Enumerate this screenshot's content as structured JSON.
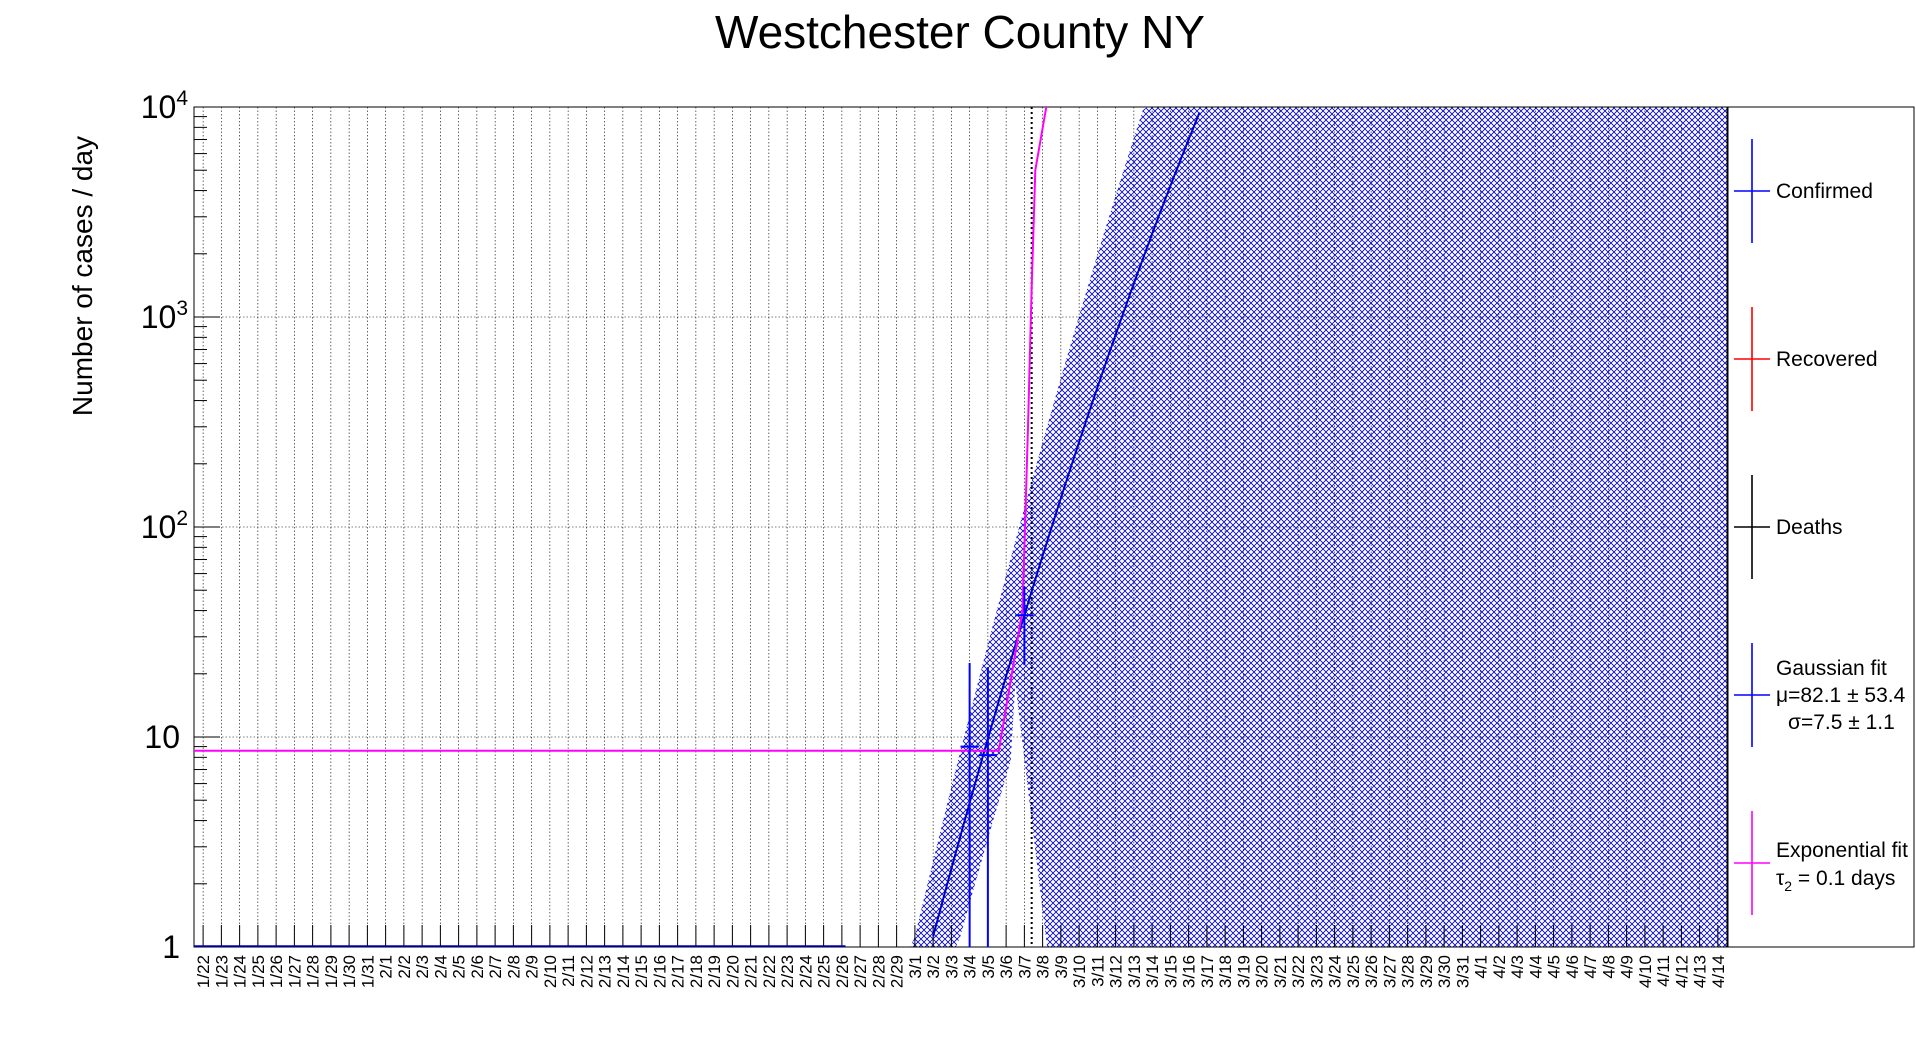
{
  "chart_data": {
    "type": "line",
    "title": "Westchester County NY",
    "ylabel": "Number of cases / day",
    "xlabel": "",
    "yscale": "log",
    "ylim": [
      1,
      10000
    ],
    "y_ticks": [
      {
        "value": 1,
        "base": "1",
        "exp": ""
      },
      {
        "value": 10,
        "base": "10",
        "exp": ""
      },
      {
        "value": 100,
        "base": "10",
        "exp": "2"
      },
      {
        "value": 1000,
        "base": "10",
        "exp": "3"
      },
      {
        "value": 10000,
        "base": "10",
        "exp": "4"
      }
    ],
    "x_categories": [
      "1/22",
      "1/23",
      "1/24",
      "1/25",
      "1/26",
      "1/27",
      "1/28",
      "1/29",
      "1/30",
      "1/31",
      "2/1",
      "2/2",
      "2/3",
      "2/4",
      "2/5",
      "2/6",
      "2/7",
      "2/8",
      "2/9",
      "2/10",
      "2/11",
      "2/12",
      "2/13",
      "2/14",
      "2/15",
      "2/16",
      "2/17",
      "2/18",
      "2/19",
      "2/20",
      "2/21",
      "2/22",
      "2/23",
      "2/24",
      "2/25",
      "2/26",
      "2/27",
      "2/28",
      "2/29",
      "3/1",
      "3/2",
      "3/3",
      "3/4",
      "3/5",
      "3/6",
      "3/7",
      "3/8",
      "3/9",
      "3/10",
      "3/11",
      "3/12",
      "3/13",
      "3/14",
      "3/15",
      "3/16",
      "3/17",
      "3/18",
      "3/19",
      "3/20",
      "3/21",
      "3/22",
      "3/23",
      "3/24",
      "3/25",
      "3/26",
      "3/27",
      "3/28",
      "3/29",
      "3/30",
      "3/31",
      "4/1",
      "4/2",
      "4/3",
      "4/4",
      "4/5",
      "4/6",
      "4/7",
      "4/8",
      "4/9",
      "4/10",
      "4/11",
      "4/12",
      "4/13",
      "4/14"
    ],
    "grid": true,
    "vertical_marker": {
      "x": 45.4,
      "style": "dotted",
      "color": "#000000"
    },
    "series": [
      {
        "name": "Confirmed",
        "color": "#0000ff",
        "kind": "points",
        "points": [
          {
            "x": 42.0,
            "y": 9,
            "yerr_low": 1,
            "yerr_high": 22.5,
            "xerr": 0.5
          },
          {
            "x": 43.0,
            "y": 8.2,
            "yerr_low": 1,
            "yerr_high": 21.5,
            "xerr": 0.5
          },
          {
            "x": 45.0,
            "y": 38,
            "yerr_low": 22,
            "yerr_high": 52,
            "xerr": 0.5
          }
        ]
      },
      {
        "name": "Gaussian fit",
        "color": "#0000cc",
        "kind": "curve",
        "params": {
          "mu": "μ=82.1 ± 53.4",
          "sigma": "σ=7.5 ± 1.1"
        },
        "band": {
          "color": "#0000cc",
          "pattern": "crosshatch"
        }
      },
      {
        "name": "Exponential fit",
        "color": "#ff00ff",
        "kind": "step",
        "params": {
          "tau": "τ",
          "tau_sub": "2",
          "tau_rest": " = 0.1 days"
        },
        "points": [
          {
            "x": 0,
            "y": 8.6
          },
          {
            "x": 43.6,
            "y": 8.6
          },
          {
            "x": 44.9,
            "y": 40
          },
          {
            "x": 45.2,
            "y": 300
          },
          {
            "x": 45.4,
            "y": 1400
          },
          {
            "x": 45.6,
            "y": 5000
          },
          {
            "x": 46.2,
            "y": 10000
          }
        ]
      }
    ],
    "legend": {
      "placement": "right",
      "entries": [
        {
          "label": "Confirmed",
          "color": "#0000ff"
        },
        {
          "label": "Recovered",
          "color": "#ff0000"
        },
        {
          "label": "Deaths",
          "color": "#000000"
        },
        {
          "label": "Gaussian fit",
          "color": "#0000ff"
        },
        {
          "label": "Exponential fit",
          "color": "#ff00ff"
        }
      ]
    }
  }
}
